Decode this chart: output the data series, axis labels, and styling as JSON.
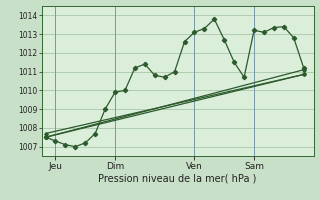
{
  "title": "",
  "xlabel": "Pression niveau de la mer( hPa )",
  "ylabel": "",
  "background_color": "#c8dfc8",
  "plot_bg_color": "#daeeda",
  "grid_color": "#a0bfa0",
  "line_color": "#2d5a2d",
  "ylim": [
    1006.5,
    1014.5
  ],
  "yticks": [
    1007,
    1008,
    1009,
    1010,
    1011,
    1012,
    1013,
    1014
  ],
  "day_labels": [
    "Jeu",
    "Dim",
    "Ven",
    "Sam"
  ],
  "day_positions": [
    0.5,
    3.5,
    7.5,
    10.5
  ],
  "xlim": [
    -0.2,
    13.5
  ],
  "series": [
    [
      0.0,
      1007.5,
      0.5,
      1007.3,
      1.0,
      1007.1,
      1.5,
      1007.0,
      2.0,
      1007.2,
      2.5,
      1007.7,
      3.0,
      1009.0,
      3.5,
      1009.9,
      4.0,
      1010.0,
      4.5,
      1011.2,
      5.0,
      1011.4,
      5.5,
      1010.8,
      6.0,
      1010.7,
      6.5,
      1011.0,
      7.0,
      1012.6,
      7.5,
      1013.1,
      8.0,
      1013.3,
      8.5,
      1013.8,
      9.0,
      1012.7,
      9.5,
      1011.5,
      10.0,
      1010.7,
      10.5,
      1013.2,
      11.0,
      1013.1,
      11.5,
      1013.35,
      12.0,
      1013.4,
      12.5,
      1012.8,
      13.0,
      1011.2
    ],
    [
      0.0,
      1007.5,
      13.0,
      1011.1
    ],
    [
      0.0,
      1007.5,
      13.0,
      1010.85
    ],
    [
      0.0,
      1007.7,
      13.0,
      1010.85
    ]
  ]
}
